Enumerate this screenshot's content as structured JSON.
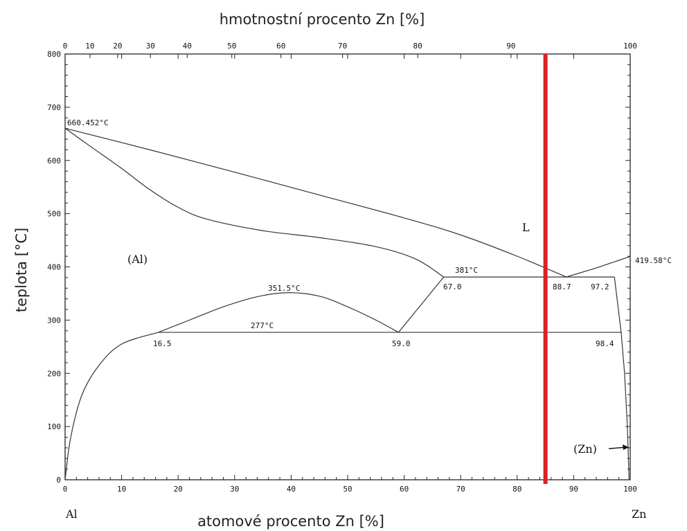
{
  "top_axis_title": "hmotnostní procento Zn [%]",
  "bottom_axis_title": "atomové procento Zn  [%]",
  "y_axis_title": "teplota [°C]",
  "left_element": "Al",
  "right_element": "Zn",
  "x_bottom_ticks": [
    "0",
    "10",
    "20",
    "30",
    "40",
    "50",
    "60",
    "70",
    "80",
    "90",
    "100"
  ],
  "x_top_ticks": [
    "0",
    "10",
    "20",
    "30",
    "40",
    "50",
    "60",
    "70",
    "80",
    "90",
    "100"
  ],
  "y_ticks": [
    "0",
    "100",
    "200",
    "300",
    "400",
    "500",
    "600",
    "700",
    "800"
  ],
  "annotations": {
    "al_melting": "660.452°C",
    "zn_melting": "419.58°C",
    "eutectic_temp": "381°C",
    "monotectoid_temp": "277°C",
    "miscibility_peak": "351.5°C",
    "phase_al": "(Al)",
    "phase_l": "L",
    "phase_zn": "(Zn)",
    "c67": "67.0",
    "c887": "88.7",
    "c972": "97.2",
    "c165": "16.5",
    "c590": "59.0",
    "c984": "98.4"
  },
  "chart_data": {
    "type": "phase-diagram",
    "xlabel": "atomové procento Zn  [%]",
    "x2label": "hmotnostní procento Zn [%]",
    "ylabel": "teplota [°C]",
    "xlim": [
      0,
      100
    ],
    "ylim": [
      0,
      800
    ],
    "top_axis_weight_pct_ticks_at_atomic_pct": [
      {
        "wt": 0,
        "at": 0
      },
      {
        "wt": 10,
        "at": 4.4
      },
      {
        "wt": 20,
        "at": 9.3
      },
      {
        "wt": 30,
        "at": 15.1
      },
      {
        "wt": 40,
        "at": 21.6
      },
      {
        "wt": 50,
        "at": 29.5
      },
      {
        "wt": 60,
        "at": 38.2
      },
      {
        "wt": 70,
        "at": 49.1
      },
      {
        "wt": 80,
        "at": 62.4
      },
      {
        "wt": 90,
        "at": 78.9
      },
      {
        "wt": 100,
        "at": 100
      }
    ],
    "points": {
      "Al_melting": [
        0,
        660.452
      ],
      "Zn_melting": [
        100,
        419.58
      ],
      "eutectic": [
        88.7,
        381
      ],
      "eutectic_solid_Al": [
        67.0,
        381
      ],
      "eutectic_solid_Zn": [
        97.2,
        381
      ],
      "monotectoid_left": [
        16.5,
        277
      ],
      "monotectoid_center": [
        59.0,
        277
      ],
      "monotectoid_right": [
        98.4,
        277
      ],
      "miscibility_gap_peak": [
        39.5,
        351.5
      ]
    },
    "liquidus": [
      [
        0,
        660.452
      ],
      [
        15,
        620
      ],
      [
        30,
        578
      ],
      [
        45,
        535
      ],
      [
        60,
        492
      ],
      [
        70,
        460
      ],
      [
        80,
        420
      ],
      [
        88.7,
        381
      ],
      [
        94,
        398
      ],
      [
        100,
        419.58
      ]
    ],
    "solidus": [
      [
        0,
        660.452
      ],
      [
        4,
        630
      ],
      [
        10,
        585
      ],
      [
        15,
        545
      ],
      [
        20,
        512
      ],
      [
        25,
        490
      ],
      [
        35,
        468
      ],
      [
        45,
        455
      ],
      [
        55,
        438
      ],
      [
        62,
        415
      ],
      [
        67,
        381
      ]
    ],
    "miscibility_gap": [
      [
        16.5,
        277
      ],
      [
        22,
        300
      ],
      [
        28,
        325
      ],
      [
        34,
        344
      ],
      [
        39.5,
        351.5
      ],
      [
        45,
        345
      ],
      [
        50,
        325
      ],
      [
        55,
        300
      ],
      [
        59,
        277
      ]
    ],
    "solvus_left": [
      [
        0,
        0
      ],
      [
        1,
        80
      ],
      [
        3,
        160
      ],
      [
        6,
        215
      ],
      [
        10,
        255
      ],
      [
        16.5,
        277
      ]
    ],
    "solvus_zn": [
      [
        97.2,
        381
      ],
      [
        98.4,
        277
      ],
      [
        99,
        200
      ],
      [
        99.5,
        100
      ],
      [
        99.8,
        0
      ]
    ],
    "isotherms": [
      {
        "t": 381,
        "x_from": 67.0,
        "x_to": 97.2
      },
      {
        "t": 277,
        "x_from": 16.5,
        "x_to": 98.4
      }
    ],
    "lines": [
      [
        [
          67.0,
          381
        ],
        [
          59.0,
          277
        ]
      ]
    ],
    "marker_line": {
      "x": 85,
      "color": "#dd1f26"
    },
    "phase_labels": [
      "(Al)",
      "L",
      "(Zn)"
    ],
    "grid": false
  }
}
